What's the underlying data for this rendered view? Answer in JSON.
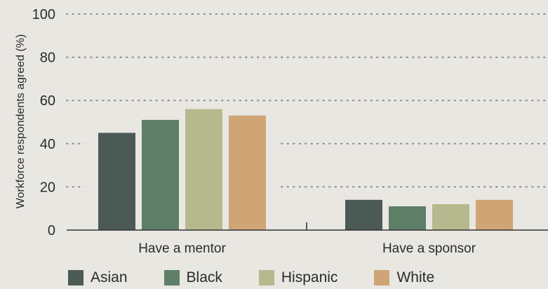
{
  "chart_data": {
    "type": "bar",
    "ylabel": "Workforce respondents agreed (%)",
    "ylim": [
      0,
      100
    ],
    "yticks": [
      0,
      20,
      40,
      60,
      80,
      100
    ],
    "categories": [
      "Have a mentor",
      "Have a sponsor"
    ],
    "grid": "dotted horizontal",
    "legend_position": "bottom",
    "series": [
      {
        "name": "Asian",
        "color": "#4c5a55",
        "values": [
          45,
          14
        ]
      },
      {
        "name": "Black",
        "color": "#5f7e68",
        "values": [
          51,
          11
        ]
      },
      {
        "name": "Hispanic",
        "color": "#b6b98d",
        "values": [
          56,
          12
        ]
      },
      {
        "name": "White",
        "color": "#cfa576",
        "values": [
          53,
          14
        ]
      }
    ]
  }
}
